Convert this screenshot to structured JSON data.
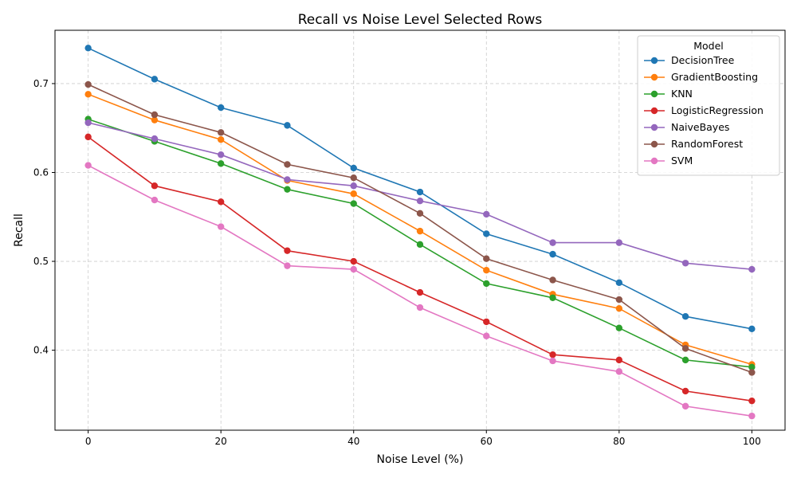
{
  "chart_data": {
    "type": "line",
    "title": "Recall vs Noise Level Selected Rows",
    "xlabel": "Noise Level (%)",
    "ylabel": "Recall",
    "x": [
      0,
      10,
      20,
      30,
      40,
      50,
      60,
      70,
      80,
      90,
      100
    ],
    "xlim": [
      -5,
      105
    ],
    "ylim": [
      0.31,
      0.76
    ],
    "xticks": [
      0,
      20,
      40,
      60,
      80,
      100
    ],
    "yticks": [
      0.4,
      0.5,
      0.6,
      0.7
    ],
    "ytick_labels": [
      "0.4",
      "0.5",
      "0.6",
      "0.7"
    ],
    "grid": true,
    "legend": {
      "title": "Model",
      "placement": "top-right"
    },
    "series": [
      {
        "name": "DecisionTree",
        "color": "#1f77b4",
        "values": [
          0.74,
          0.705,
          0.673,
          0.653,
          0.605,
          0.578,
          0.531,
          0.508,
          0.476,
          0.438,
          0.424
        ]
      },
      {
        "name": "GradientBoosting",
        "color": "#ff7f0e",
        "values": [
          0.688,
          0.659,
          0.637,
          0.591,
          0.576,
          0.534,
          0.49,
          0.463,
          0.447,
          0.406,
          0.384
        ]
      },
      {
        "name": "KNN",
        "color": "#2ca02c",
        "values": [
          0.66,
          0.635,
          0.61,
          0.581,
          0.565,
          0.519,
          0.475,
          0.459,
          0.425,
          0.389,
          0.381
        ]
      },
      {
        "name": "LogisticRegression",
        "color": "#d62728",
        "values": [
          0.64,
          0.585,
          0.567,
          0.512,
          0.5,
          0.465,
          0.432,
          0.395,
          0.389,
          0.354,
          0.343
        ]
      },
      {
        "name": "NaiveBayes",
        "color": "#9467bd",
        "values": [
          0.656,
          0.638,
          0.62,
          0.592,
          0.585,
          0.568,
          0.553,
          0.521,
          0.521,
          0.498,
          0.491
        ]
      },
      {
        "name": "RandomForest",
        "color": "#8c564b",
        "values": [
          0.699,
          0.665,
          0.645,
          0.609,
          0.594,
          0.554,
          0.503,
          0.479,
          0.457,
          0.402,
          0.375
        ]
      },
      {
        "name": "SVM",
        "color": "#e377c2",
        "values": [
          0.608,
          0.569,
          0.539,
          0.495,
          0.491,
          0.448,
          0.416,
          0.388,
          0.376,
          0.337,
          0.326
        ]
      }
    ]
  }
}
